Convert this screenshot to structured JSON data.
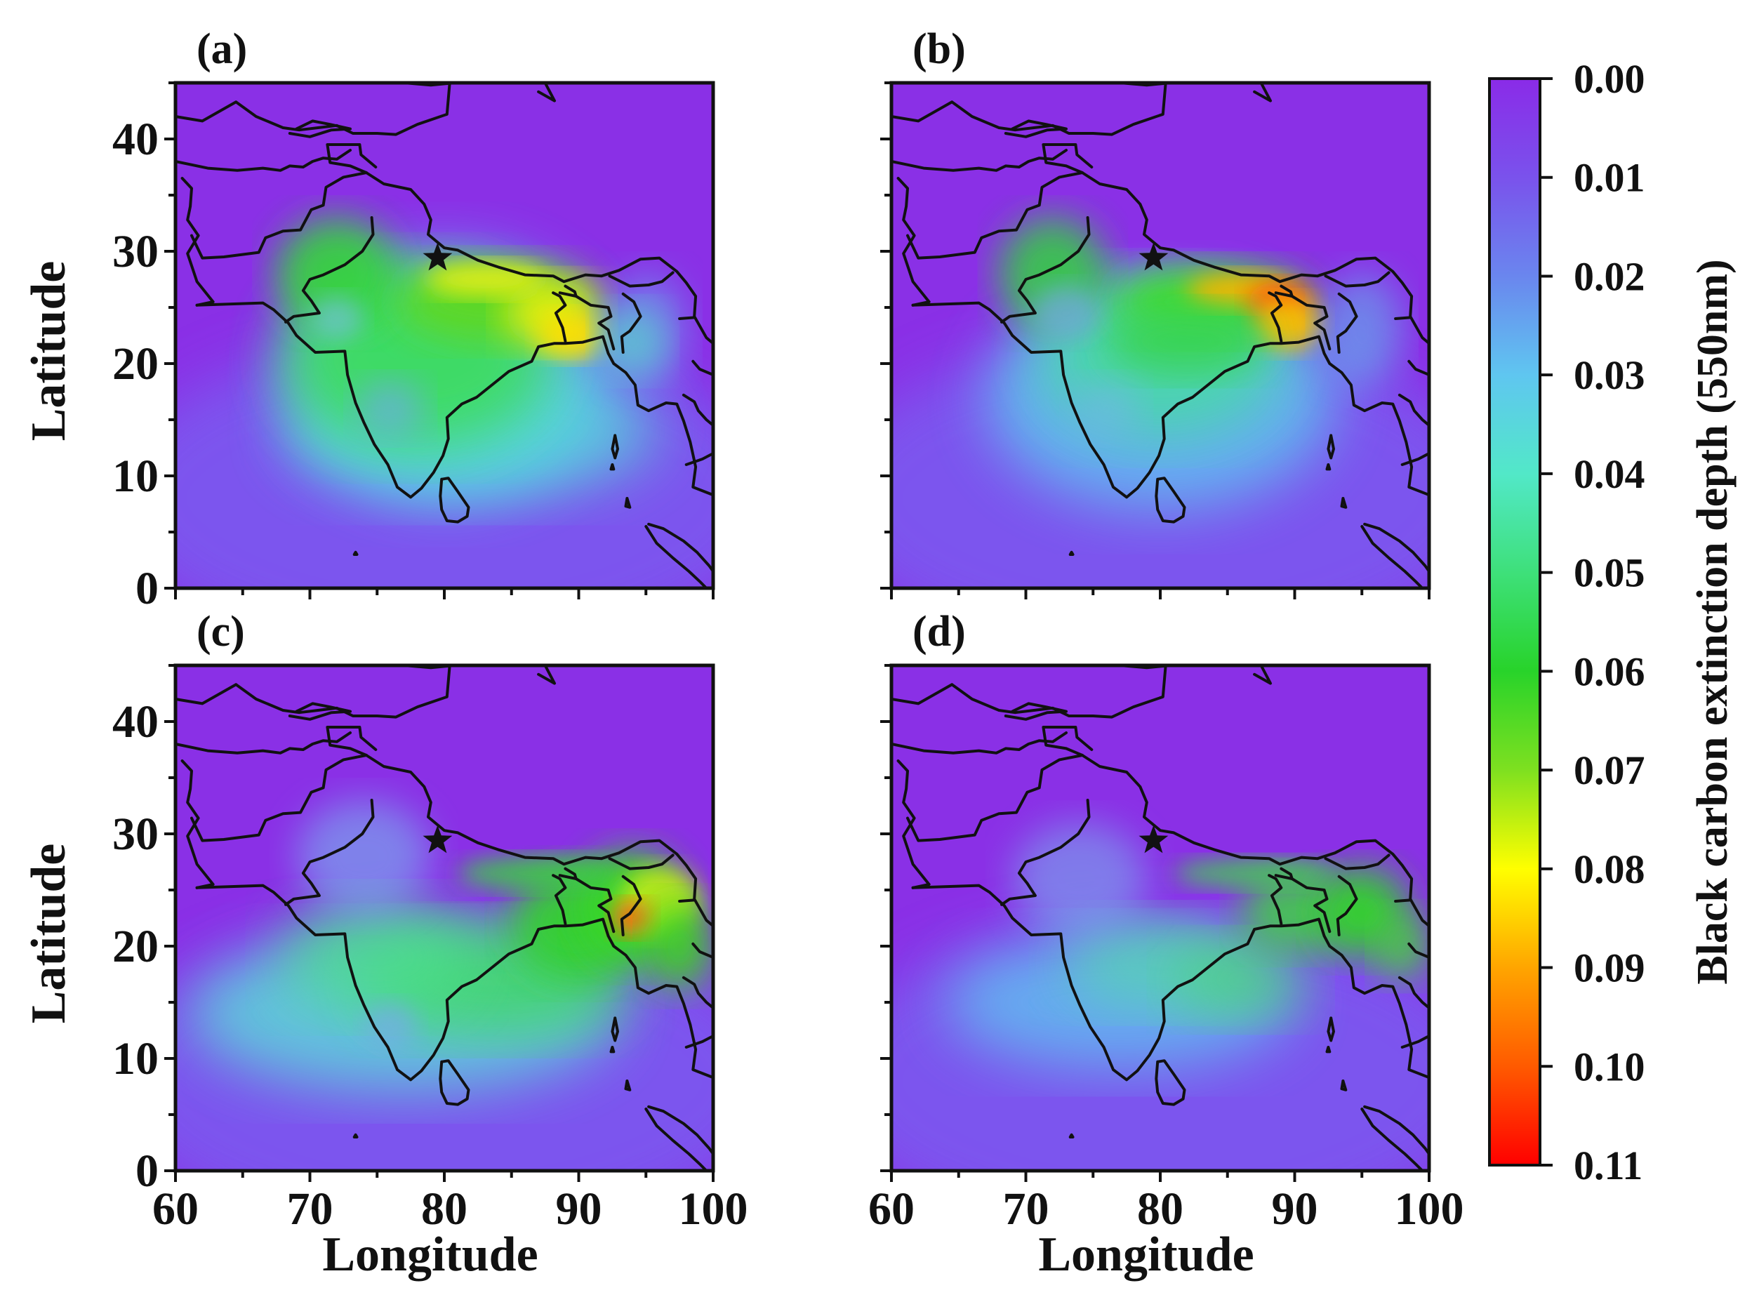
{
  "figure": {
    "panels": [
      {
        "id": "a",
        "label": "(a)",
        "show_xticks": false,
        "show_yticks": true,
        "show_xlabel": false,
        "show_ylabel": true
      },
      {
        "id": "b",
        "label": "(b)",
        "show_xticks": false,
        "show_yticks": false,
        "show_xlabel": false,
        "show_ylabel": false
      },
      {
        "id": "c",
        "label": "(c)",
        "show_xticks": true,
        "show_yticks": true,
        "show_xlabel": true,
        "show_ylabel": true
      },
      {
        "id": "d",
        "label": "(d)",
        "show_xticks": true,
        "show_yticks": false,
        "show_xlabel": true,
        "show_ylabel": false
      }
    ],
    "x_axis": {
      "label": "Longitude",
      "range": [
        60,
        100
      ],
      "ticks": [
        "60",
        "70",
        "80",
        "90",
        "100"
      ]
    },
    "y_axis": {
      "label": "Latitude",
      "range": [
        0,
        45
      ],
      "ticks": [
        "0",
        "10",
        "20",
        "30",
        "40"
      ]
    },
    "station_marker": {
      "icon": "star-icon",
      "lon": 79.5,
      "lat": 29.4
    },
    "colorbar": {
      "label": "Black carbon extinction depth (550nm)",
      "ticks": [
        "0.00",
        "0.01",
        "0.02",
        "0.03",
        "0.04",
        "0.05",
        "0.06",
        "0.07",
        "0.08",
        "0.09",
        "0.10",
        "0.11"
      ],
      "range": [
        0.0,
        0.11
      ],
      "colors": [
        "#8a2be8",
        "#7a52ec",
        "#6a86ee",
        "#5fc6f0",
        "#52e8c8",
        "#3ee07a",
        "#28d32a",
        "#7ee020",
        "#ffff00",
        "#ffa500",
        "#ff5a00",
        "#ff0000"
      ]
    }
  }
}
